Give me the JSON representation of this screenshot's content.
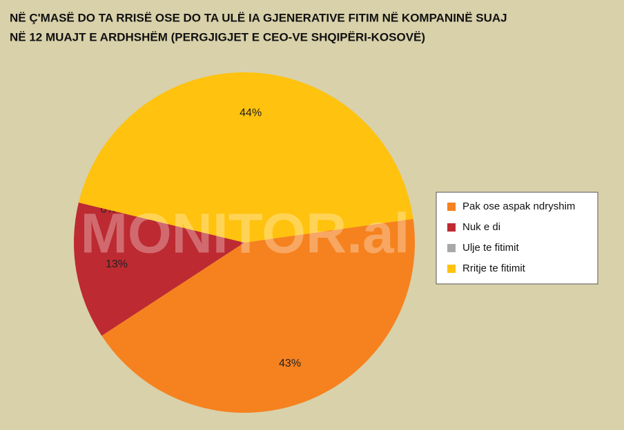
{
  "chart_data": {
    "type": "pie",
    "title": [
      "NË Ç'MASË DO TA RRISË OSE DO TA ULË IA GJENERATIVE FITIM NË KOMPANINË SUAJ",
      "NË 12 MUAJT E ARDHSHËM (PERGJIGJET E CEO-VE SHQIPËRI-KOSOVË)"
    ],
    "watermark": "MONITOR.al",
    "categories": [
      "Pak ose aspak ndryshim",
      "Nuk e di",
      "Ulje te fitimit",
      "Rritje te fitimit"
    ],
    "values": [
      43,
      13,
      0,
      44
    ],
    "value_labels": [
      "43%",
      "13%",
      "0%",
      "44%"
    ],
    "colors": [
      "#f5821f",
      "#bd2a31",
      "#a8a8a8",
      "#ffc20e"
    ],
    "legend": "right"
  }
}
